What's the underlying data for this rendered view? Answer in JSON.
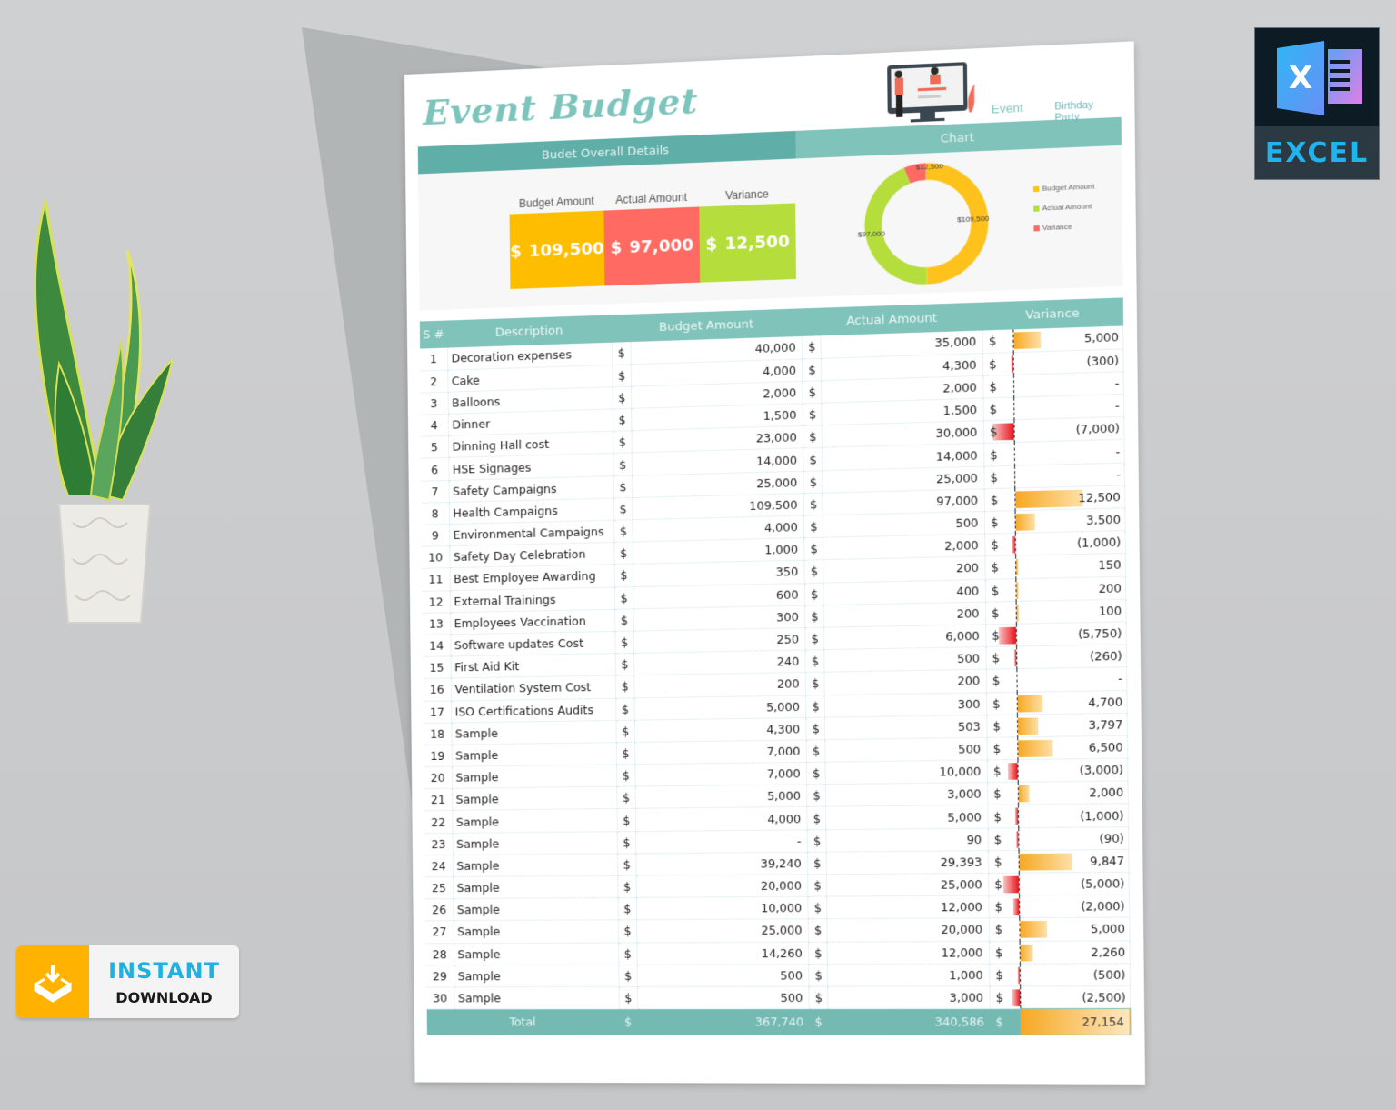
{
  "sheet": {
    "title": "Event Budget",
    "event_label": "Event",
    "event_value": "Birthday Party",
    "section_left": "Budet Overall Details",
    "section_right": "Chart",
    "kpis": [
      {
        "label": "Budget Amount",
        "currency": "$",
        "value": "109,500",
        "color": "#ffbd00"
      },
      {
        "label": "Actual Amount",
        "currency": "$",
        "value": "97,000",
        "color": "#ff6a62"
      },
      {
        "label": "Variance",
        "currency": "$",
        "value": "12,500",
        "color": "#b5dd3c"
      }
    ],
    "table": {
      "headers": [
        "S #",
        "Description",
        "Budget Amount",
        "Actual Amount",
        "Variance"
      ],
      "rows": [
        {
          "sn": "1",
          "desc": "Decoration expenses",
          "budget": "40,000",
          "actual": "35,000",
          "variance": "5,000",
          "var_num": 5000
        },
        {
          "sn": "2",
          "desc": "Cake",
          "budget": "4,000",
          "actual": "4,300",
          "variance": "(300)",
          "var_num": -300
        },
        {
          "sn": "3",
          "desc": "Balloons",
          "budget": "2,000",
          "actual": "2,000",
          "variance": "-",
          "var_num": 0
        },
        {
          "sn": "4",
          "desc": "Dinner",
          "budget": "1,500",
          "actual": "1,500",
          "variance": "-",
          "var_num": 0
        },
        {
          "sn": "5",
          "desc": "Dinning Hall cost",
          "budget": "23,000",
          "actual": "30,000",
          "variance": "(7,000)",
          "var_num": -7000
        },
        {
          "sn": "6",
          "desc": "HSE Signages",
          "budget": "14,000",
          "actual": "14,000",
          "variance": "-",
          "var_num": 0
        },
        {
          "sn": "7",
          "desc": "Safety Campaigns",
          "budget": "25,000",
          "actual": "25,000",
          "variance": "-",
          "var_num": 0
        },
        {
          "sn": "8",
          "desc": "Health Campaigns",
          "budget": "109,500",
          "actual": "97,000",
          "variance": "12,500",
          "var_num": 12500
        },
        {
          "sn": "9",
          "desc": "Environmental Campaigns",
          "budget": "4,000",
          "actual": "500",
          "variance": "3,500",
          "var_num": 3500
        },
        {
          "sn": "10",
          "desc": "Safety Day Celebration",
          "budget": "1,000",
          "actual": "2,000",
          "variance": "(1,000)",
          "var_num": -1000
        },
        {
          "sn": "11",
          "desc": "Best Employee Awarding",
          "budget": "350",
          "actual": "200",
          "variance": "150",
          "var_num": 150
        },
        {
          "sn": "12",
          "desc": "External Trainings",
          "budget": "600",
          "actual": "400",
          "variance": "200",
          "var_num": 200
        },
        {
          "sn": "13",
          "desc": "Employees Vaccination",
          "budget": "300",
          "actual": "200",
          "variance": "100",
          "var_num": 100
        },
        {
          "sn": "14",
          "desc": "Software updates Cost",
          "budget": "250",
          "actual": "6,000",
          "variance": "(5,750)",
          "var_num": -5750
        },
        {
          "sn": "15",
          "desc": "First Aid Kit",
          "budget": "240",
          "actual": "500",
          "variance": "(260)",
          "var_num": -260
        },
        {
          "sn": "16",
          "desc": "Ventilation System Cost",
          "budget": "200",
          "actual": "200",
          "variance": "-",
          "var_num": 0
        },
        {
          "sn": "17",
          "desc": "ISO Certifications Audits",
          "budget": "5,000",
          "actual": "300",
          "variance": "4,700",
          "var_num": 4700
        },
        {
          "sn": "18",
          "desc": "Sample",
          "budget": "4,300",
          "actual": "503",
          "variance": "3,797",
          "var_num": 3797
        },
        {
          "sn": "19",
          "desc": "Sample",
          "budget": "7,000",
          "actual": "500",
          "variance": "6,500",
          "var_num": 6500
        },
        {
          "sn": "20",
          "desc": "Sample",
          "budget": "7,000",
          "actual": "10,000",
          "variance": "(3,000)",
          "var_num": -3000
        },
        {
          "sn": "21",
          "desc": "Sample",
          "budget": "5,000",
          "actual": "3,000",
          "variance": "2,000",
          "var_num": 2000
        },
        {
          "sn": "22",
          "desc": "Sample",
          "budget": "4,000",
          "actual": "5,000",
          "variance": "(1,000)",
          "var_num": -1000
        },
        {
          "sn": "23",
          "desc": "Sample",
          "budget": "-",
          "actual": "90",
          "variance": "(90)",
          "var_num": -90
        },
        {
          "sn": "24",
          "desc": "Sample",
          "budget": "39,240",
          "actual": "29,393",
          "variance": "9,847",
          "var_num": 9847
        },
        {
          "sn": "25",
          "desc": "Sample",
          "budget": "20,000",
          "actual": "25,000",
          "variance": "(5,000)",
          "var_num": -5000
        },
        {
          "sn": "26",
          "desc": "Sample",
          "budget": "10,000",
          "actual": "12,000",
          "variance": "(2,000)",
          "var_num": -2000
        },
        {
          "sn": "27",
          "desc": "Sample",
          "budget": "25,000",
          "actual": "20,000",
          "variance": "5,000",
          "var_num": 5000
        },
        {
          "sn": "28",
          "desc": "Sample",
          "budget": "14,260",
          "actual": "12,000",
          "variance": "2,260",
          "var_num": 2260
        },
        {
          "sn": "29",
          "desc": "Sample",
          "budget": "500",
          "actual": "1,000",
          "variance": "(500)",
          "var_num": -500
        },
        {
          "sn": "30",
          "desc": "Sample",
          "budget": "500",
          "actual": "3,000",
          "variance": "(2,500)",
          "var_num": -2500
        }
      ],
      "total": {
        "label": "Total",
        "currency": "$",
        "budget": "367,740",
        "actual": "340,586",
        "variance": "27,154"
      }
    }
  },
  "chart_data": {
    "type": "pie",
    "subtype": "donut",
    "title": "Chart",
    "categories": [
      "Budget Amount",
      "Actual Amount",
      "Variance"
    ],
    "values": [
      109500,
      97000,
      12500
    ],
    "data_labels": [
      "$109,500",
      "$97,000",
      "$12,500"
    ],
    "colors": [
      "#ffc21c",
      "#b5dd3c",
      "#ff6a62"
    ],
    "legend_position": "right"
  },
  "badges": {
    "excel_label": "EXCEL",
    "excel_glyph": "X",
    "instant": "INSTANT",
    "download": "DOWNLOAD"
  }
}
